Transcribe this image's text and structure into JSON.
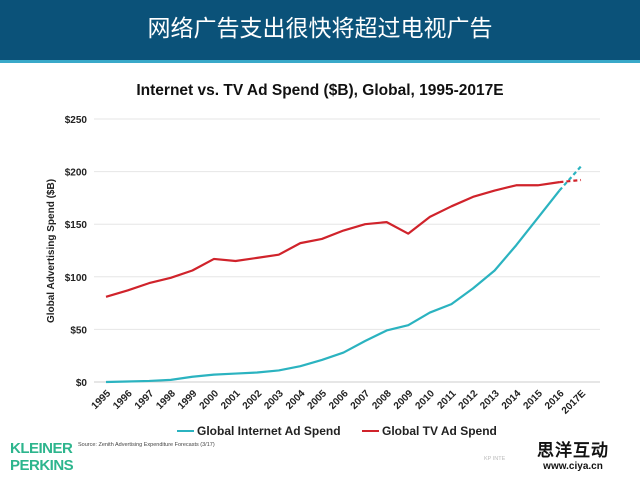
{
  "header": {
    "title": "网络广告支出很快将超过电视广告"
  },
  "chart_data": {
    "type": "line",
    "title": "Internet vs. TV Ad Spend ($B), Global, 1995-2017E",
    "xlabel": "",
    "ylabel": "Global Advertising Spend ($B)",
    "ylim": [
      0,
      250
    ],
    "yticks": [
      0,
      50,
      100,
      150,
      200,
      250
    ],
    "ytick_labels": [
      "$0",
      "$50",
      "$100",
      "$150",
      "$200",
      "$250"
    ],
    "categories": [
      "1995",
      "1996",
      "1997",
      "1998",
      "1999",
      "2000",
      "2001",
      "2002",
      "2003",
      "2004",
      "2005",
      "2006",
      "2007",
      "2008",
      "2009",
      "2010",
      "2011",
      "2012",
      "2013",
      "2014",
      "2015",
      "2016",
      "2017E"
    ],
    "grid": true,
    "legend_placement": "bottom",
    "series": [
      {
        "name": "Global Internet Ad Spend",
        "color": "#2bb3c0",
        "values": [
          0,
          0.5,
          1,
          2,
          5,
          7,
          8,
          9,
          11,
          15,
          21,
          28,
          39,
          49,
          54,
          66,
          74,
          89,
          106,
          130,
          156,
          182,
          205
        ],
        "dashed_last_segment": true
      },
      {
        "name": "Global TV Ad Spend",
        "color": "#d0232b",
        "values": [
          81,
          87,
          94,
          99,
          106,
          117,
          115,
          118,
          121,
          132,
          136,
          144,
          150,
          152,
          141,
          157,
          167,
          176,
          182,
          187,
          187,
          190,
          192
        ],
        "dashed_last_segment": true
      }
    ]
  },
  "footer": {
    "logo": "KLEINER PERKINS",
    "source": "Source: Zenith Advertising Expenditure Forecasts (3/17)",
    "kp": "KP INTE",
    "watermark_cn": "思洋互动",
    "watermark_url": "www.ciya.cn"
  }
}
